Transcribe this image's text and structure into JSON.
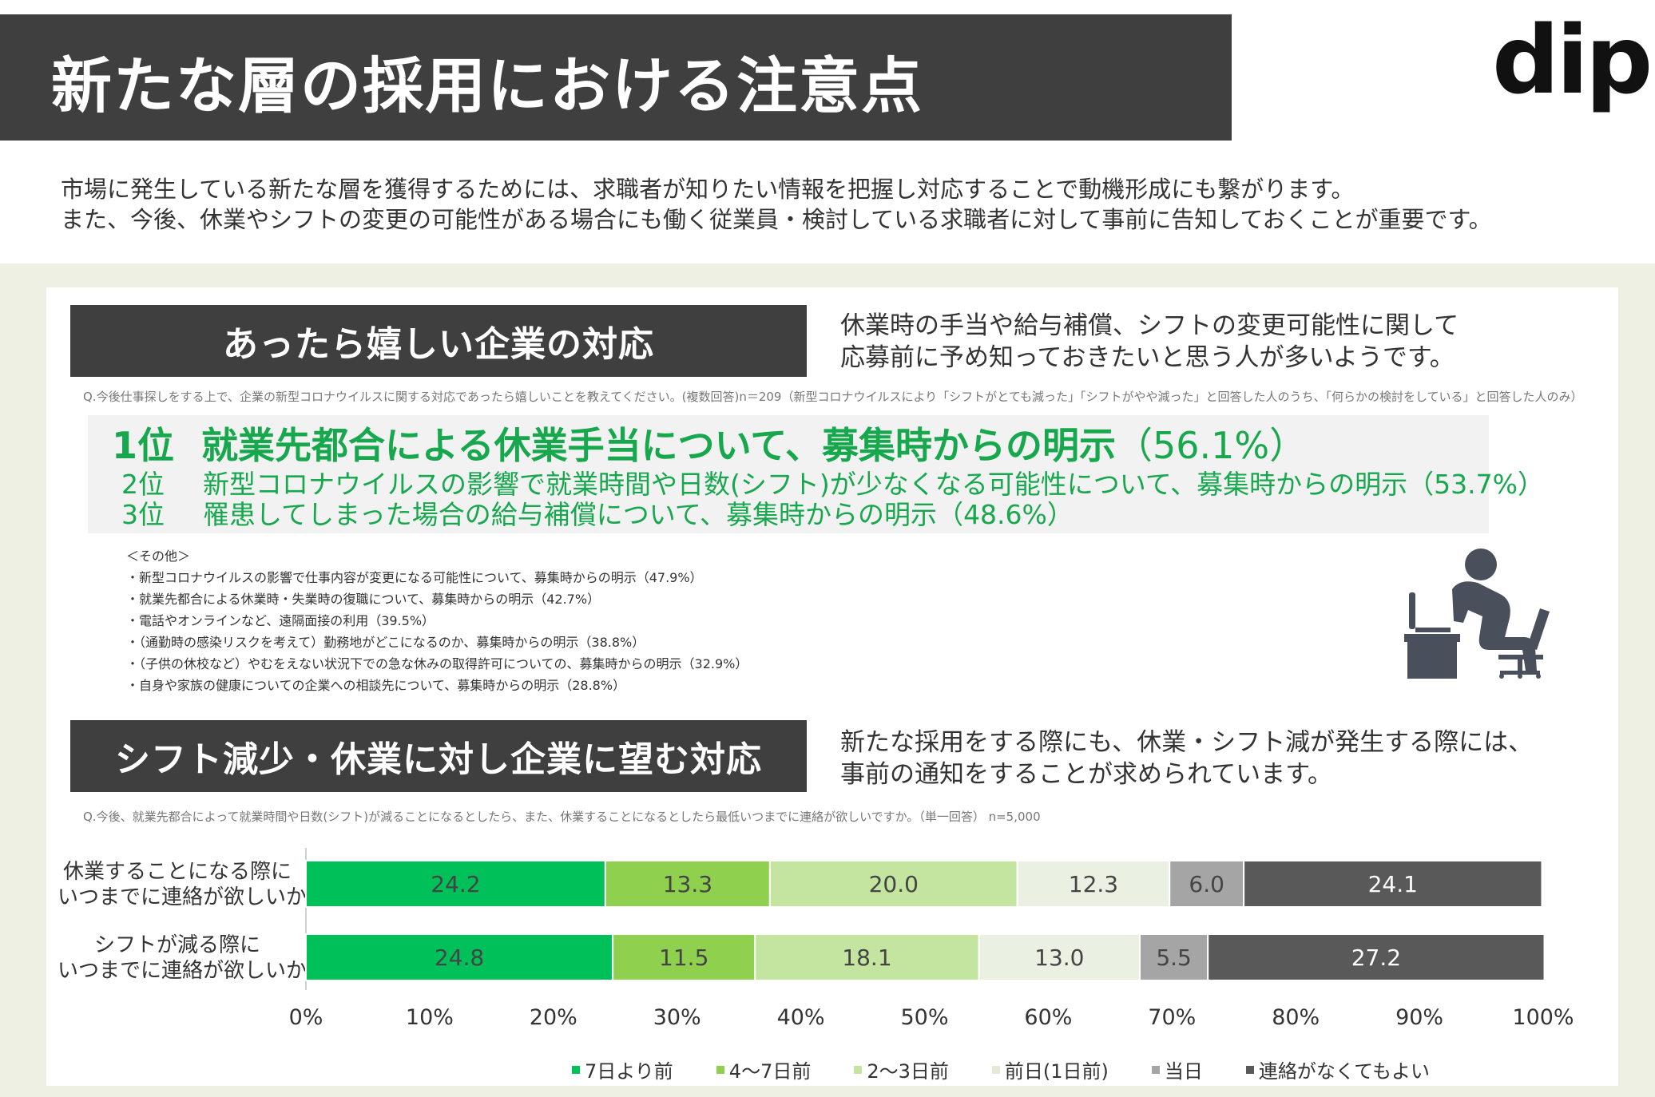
{
  "header": {
    "title": "新たな層の採用における注意点",
    "logo": "dip"
  },
  "intro": {
    "line1": "市場に発生している新たな層を獲得するためには、求職者が知りたい情報を把握し対応することで動機形成にも繋がります。",
    "line2": "また、今後、休業やシフトの変更の可能性がある場合にも働く従業員・検討している求職者に対して事前に告知しておくことが重要です。"
  },
  "section1": {
    "title": "あったら嬉しい企業の対応",
    "note1": "休業時の手当や給与補償、シフトの変更可能性に関して",
    "note2": "応募前に予め知っておきたいと思う人が多いようです。",
    "question": "Q.今後仕事探しをする上で、企業の新型コロナウイルスに関する対応であったら嬉しいことを教えてください。(複数回答)n＝209（新型コロナウイルスにより「シフトがとても減った」「シフトがやや減った」と回答した人のうち、「何らかの検討をしている」と回答した人のみ）",
    "ranking": [
      {
        "rank": "1位",
        "text": "就業先都合による休業手当について、募集時からの明示",
        "pct": "（56.1%）"
      },
      {
        "rank": "2位",
        "text": "新型コロナウイルスの影響で就業時間や日数(シフト)が少なくなる可能性について、募集時からの明示",
        "pct": "（53.7%）"
      },
      {
        "rank": "3位",
        "text": "罹患してしまった場合の給与補償について、募集時からの明示",
        "pct": "（48.6%）"
      }
    ],
    "others_heading": "＜その他＞",
    "others": [
      "・新型コロナウイルスの影響で仕事内容が変更になる可能性について、募集時からの明示（47.9%）",
      "・就業先都合による休業時・失業時の復職について、募集時からの明示（42.7%）",
      "・電話やオンラインなど、遠隔面接の利用（39.5%）",
      "・（通勤時の感染リスクを考えて）勤務地がどこになるのか、募集時からの明示（38.8%）",
      "・（子供の休校など）やむをえない状況下での急な休みの取得許可についての、募集時からの明示（32.9%）",
      "・自身や家族の健康についての企業への相談先について、募集時からの明示（28.8%）"
    ]
  },
  "section2": {
    "title": "シフト減少・休業に対し企業に望む対応",
    "note1": "新たな採用をする際にも、休業・シフト減が発生する際には、",
    "note2": "事前の通知をすることが求められています。",
    "question": "Q.今後、就業先都合によって就業時間や日数(シフト)が減ることになるとしたら、また、休業することになるとしたら最低いつまでに連絡が欲しいですか。（単一回答） n=5,000"
  },
  "chart_data": {
    "type": "bar",
    "orientation": "horizontal",
    "stacked": true,
    "categories": [
      "休業することになる際に\nいつまでに連絡が欲しいか",
      "シフトが減る際に\nいつまでに連絡が欲しいか"
    ],
    "category_lines": [
      [
        "休業することになる際に",
        "いつまでに連絡が欲しいか"
      ],
      [
        "シフトが減る際に",
        "いつまでに連絡が欲しいか"
      ]
    ],
    "series": [
      {
        "name": "7日より前",
        "color": "#00c05a",
        "values": [
          24.2,
          24.8
        ]
      },
      {
        "name": "4～7日前",
        "color": "#8fd14f",
        "values": [
          13.3,
          11.5
        ]
      },
      {
        "name": "2～3日前",
        "color": "#c4e5a0",
        "values": [
          20.0,
          18.1
        ]
      },
      {
        "name": "前日(1日前)",
        "color": "#eaf1e2",
        "values": [
          12.3,
          13.0
        ]
      },
      {
        "name": "当日",
        "color": "#a5a5a5",
        "values": [
          6.0,
          5.5
        ]
      },
      {
        "name": "連絡がなくてもよい",
        "color": "#595959",
        "values": [
          24.1,
          27.2
        ]
      }
    ],
    "value_labels": [
      [
        "24.2",
        "13.3",
        "20.0",
        "12.3",
        "6.0",
        "24.1"
      ],
      [
        "24.8",
        "11.5",
        "18.1",
        "13.0",
        "5.5",
        "27.2"
      ]
    ],
    "xlim": [
      0,
      100
    ],
    "xticks": [
      "0%",
      "10%",
      "20%",
      "30%",
      "40%",
      "50%",
      "60%",
      "70%",
      "80%",
      "90%",
      "100%"
    ],
    "legend_position": "bottom"
  }
}
